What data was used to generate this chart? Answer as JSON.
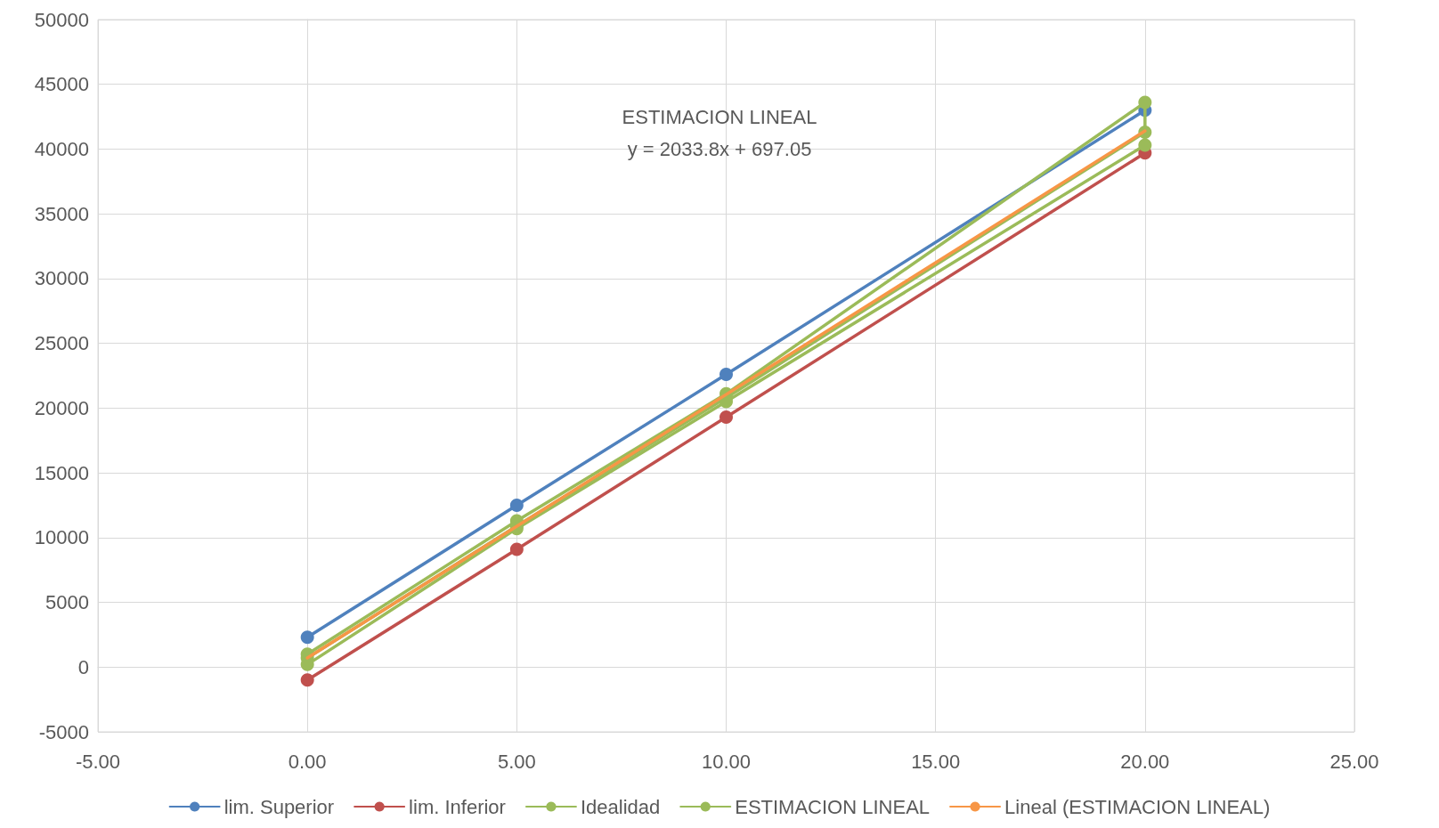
{
  "chart_data": {
    "type": "line",
    "xlim": [
      -5,
      25
    ],
    "xticks": [
      {
        "value": -5,
        "label": "-5.00"
      },
      {
        "value": 0,
        "label": "0.00"
      },
      {
        "value": 5,
        "label": "5.00"
      },
      {
        "value": 10,
        "label": "10.00"
      },
      {
        "value": 15,
        "label": "15.00"
      },
      {
        "value": 20,
        "label": "20.00"
      },
      {
        "value": 25,
        "label": "25.00"
      }
    ],
    "ylim": [
      -5000,
      50000
    ],
    "yticks": [
      -5000,
      0,
      5000,
      10000,
      15000,
      20000,
      25000,
      30000,
      35000,
      40000,
      45000,
      50000
    ],
    "grid": true,
    "legend": "bottom",
    "marker": "circle",
    "annotations": [
      "ESTIMACION LINEAL",
      "y = 2033.8x + 697.05"
    ],
    "series": [
      {
        "name": "lim. Superior",
        "color": "#4f81bd",
        "x": [
          0,
          5,
          10,
          20
        ],
        "values": [
          2300,
          12500,
          22600,
          43000
        ]
      },
      {
        "name": "lim. Inferior",
        "color": "#c0504d",
        "x": [
          0,
          5,
          10,
          20
        ],
        "values": [
          -1000,
          9100,
          19300,
          39700
        ]
      },
      {
        "name": "Idealidad",
        "color": "#9bbb59",
        "x": [
          0,
          5,
          10,
          20
        ],
        "values": [
          700,
          10900,
          20800,
          41300
        ]
      },
      {
        "name": "ESTIMACION LINEAL",
        "color": "#9bbb59",
        "x": [
          0,
          5,
          10,
          20,
          20,
          10,
          5,
          0
        ],
        "values": [
          1000,
          11300,
          21100,
          43600,
          40300,
          20500,
          10700,
          200
        ]
      },
      {
        "name": "Lineal (ESTIMACION LINEAL)",
        "color": "#f79646",
        "marker": "none",
        "x": [
          0,
          20
        ],
        "values": [
          700,
          41400
        ]
      }
    ]
  }
}
